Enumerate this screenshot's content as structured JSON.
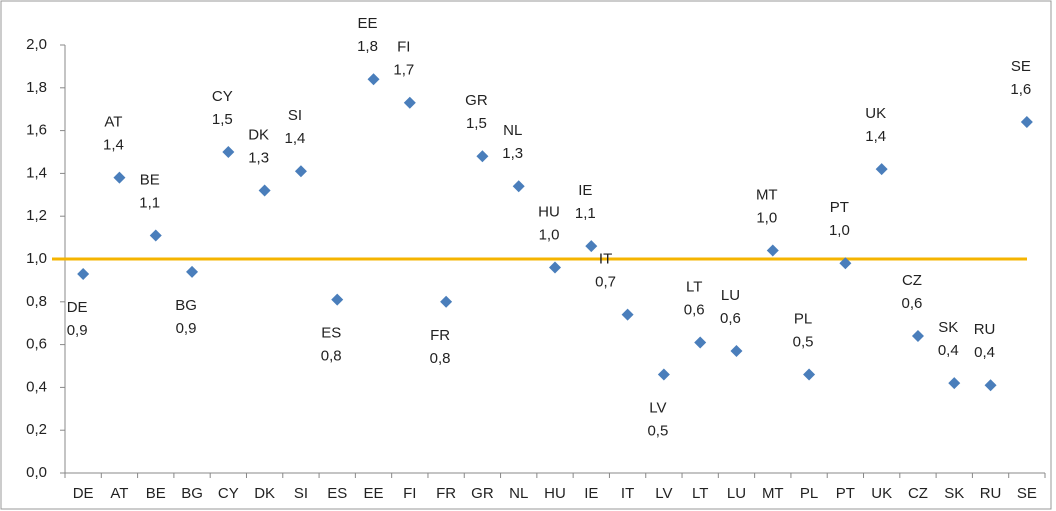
{
  "chart_data": {
    "type": "scatter",
    "categories": [
      "DE",
      "AT",
      "BE",
      "BG",
      "CY",
      "DK",
      "SI",
      "ES",
      "EE",
      "FI",
      "FR",
      "GR",
      "NL",
      "HU",
      "IE",
      "IT",
      "LV",
      "LT",
      "LU",
      "MT",
      "PL",
      "PT",
      "UK",
      "CZ",
      "SK",
      "RU",
      "SE"
    ],
    "values": [
      0.93,
      1.38,
      1.11,
      0.94,
      1.5,
      1.32,
      1.41,
      0.81,
      1.84,
      1.73,
      0.8,
      1.48,
      1.34,
      0.96,
      1.06,
      0.74,
      0.46,
      0.61,
      0.57,
      1.04,
      0.46,
      0.98,
      1.42,
      0.64,
      0.42,
      0.41,
      1.64
    ],
    "value_labels": [
      "0,9",
      "1,4",
      "1,1",
      "0,9",
      "1,5",
      "1,3",
      "1,4",
      "0,8",
      "1,8",
      "1,7",
      "0,8",
      "1,5",
      "1,3",
      "1,0",
      "1,1",
      "0,7",
      "0,5",
      "0,6",
      "0,6",
      "1,0",
      "0,5",
      "1,0",
      "1,4",
      "0,6",
      "0,4",
      "0,4",
      "1,6"
    ],
    "color": "#4a7ebb",
    "ylim": [
      0,
      2
    ],
    "yticks": [
      {
        "value": 0,
        "label": "0,0"
      },
      {
        "value": 0.2,
        "label": "0,2"
      },
      {
        "value": 0.4,
        "label": "0,4"
      },
      {
        "value": 0.6,
        "label": "0,6"
      },
      {
        "value": 0.8,
        "label": "0,8"
      },
      {
        "value": 1,
        "label": "1,0"
      },
      {
        "value": 1.2,
        "label": "1,2"
      },
      {
        "value": 1.4,
        "label": "1,4"
      },
      {
        "value": 1.6,
        "label": "1,6"
      },
      {
        "value": 1.8,
        "label": "1,8"
      },
      {
        "value": 2,
        "label": "2,0"
      }
    ],
    "reference_line": {
      "value": 1,
      "color": "#f5b400"
    }
  }
}
